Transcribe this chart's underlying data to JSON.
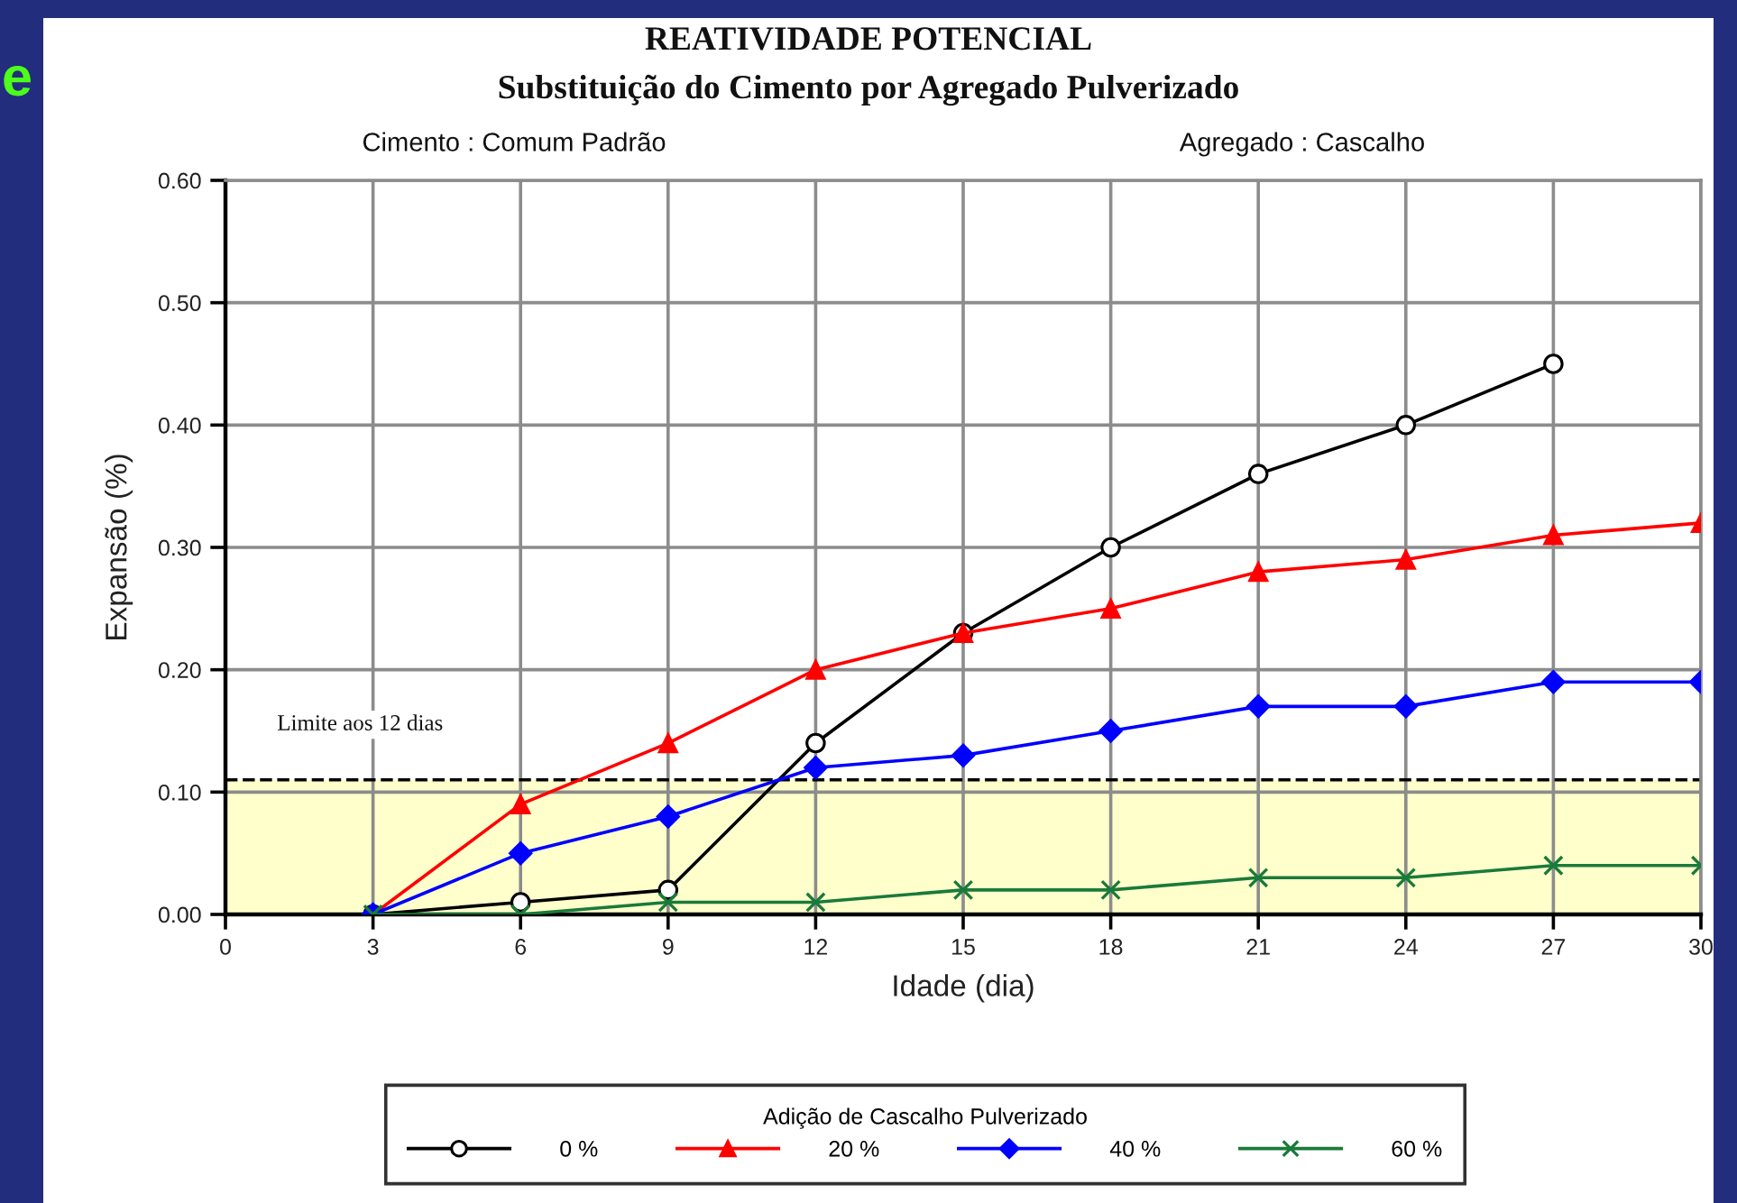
{
  "chart_data": {
    "type": "line",
    "title": "REATIVIDADE POTENCIAL",
    "subtitle": "Substituição do Cimento por Agregado Pulverizado",
    "annotations": [
      "Cimento : Comum Padrão",
      "Agregado : Cascalho",
      "e"
    ],
    "xlabel": "Idade (dia)",
    "ylabel": "Expansão (%)",
    "legend_title": "Adição de Cascalho Pulverizado",
    "series": [
      {
        "name": "0 %",
        "color": "#000000",
        "marker": "circle",
        "x": [
          3,
          6,
          9,
          12,
          15,
          18,
          21,
          24,
          27
        ],
        "values": [
          0.0,
          0.01,
          0.02,
          0.14,
          0.23,
          0.3,
          0.36,
          0.4,
          0.45
        ]
      },
      {
        "name": "20 %",
        "color": "#ff0000",
        "marker": "triangle",
        "x": [
          3,
          6,
          9,
          12,
          15,
          18,
          21,
          24,
          27,
          30
        ],
        "values": [
          0.0,
          0.09,
          0.14,
          0.2,
          0.23,
          0.25,
          0.28,
          0.29,
          0.31,
          0.32
        ]
      },
      {
        "name": "40 %",
        "color": "#0000ff",
        "marker": "diamond",
        "x": [
          3,
          6,
          9,
          12,
          15,
          18,
          21,
          24,
          27,
          30
        ],
        "values": [
          0.0,
          0.05,
          0.08,
          0.12,
          0.13,
          0.15,
          0.17,
          0.17,
          0.19,
          0.19
        ]
      },
      {
        "name": "60 %",
        "color": "#1a7a3a",
        "marker": "cross",
        "x": [
          3,
          6,
          9,
          12,
          15,
          18,
          21,
          24,
          27,
          30
        ],
        "values": [
          0.0,
          0.0,
          0.01,
          0.01,
          0.02,
          0.02,
          0.03,
          0.03,
          0.04,
          0.04
        ]
      }
    ],
    "xlim": [
      0,
      30
    ],
    "xticks": [
      0,
      3,
      6,
      9,
      12,
      15,
      18,
      21,
      24,
      27,
      30
    ],
    "ylim": [
      0,
      0.6
    ],
    "yticks": [
      {
        "value": 0,
        "label": "0.00"
      },
      {
        "value": 0.1,
        "label": "0.10"
      },
      {
        "value": 0.2,
        "label": "0.20"
      },
      {
        "value": 0.3,
        "label": "0.30"
      },
      {
        "value": 0.4,
        "label": "0.40"
      },
      {
        "value": 0.5,
        "label": "0.50"
      },
      {
        "value": 0.6,
        "label": "0.60"
      }
    ],
    "ref_lines": [
      {
        "axis": "y",
        "value": 0.11,
        "label": "Limite aos 12 dias",
        "color": "#000000",
        "line_style": "dashed"
      }
    ],
    "bands": [
      {
        "axis": "y",
        "from": 0,
        "to": 0.11,
        "color": "#ffffcc"
      }
    ],
    "grid": true,
    "legend": "bottom",
    "line_style": "solid"
  }
}
